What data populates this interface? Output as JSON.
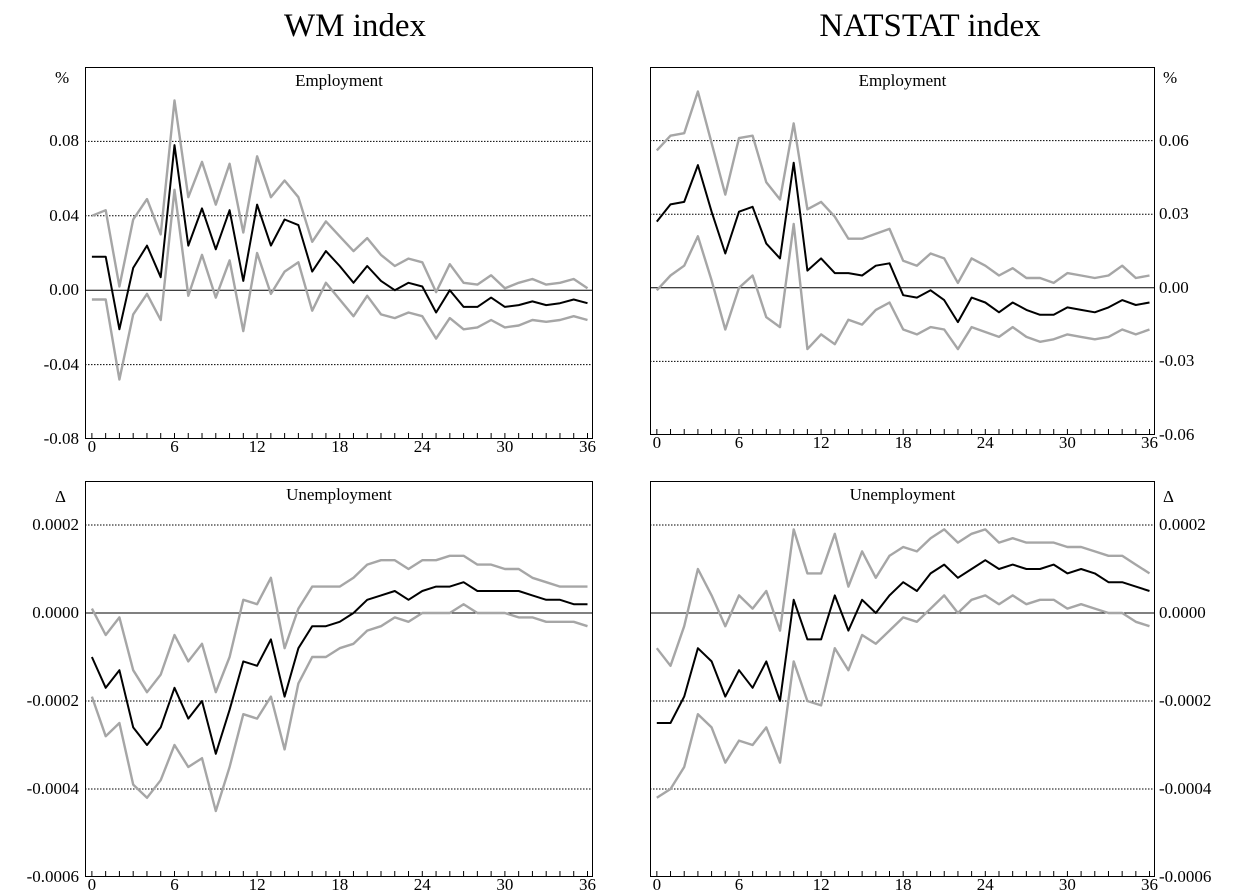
{
  "columns": [
    {
      "title": "WM index"
    },
    {
      "title": "NATSTAT index"
    }
  ],
  "colors": {
    "point": "#000000",
    "band": "#a6a6a6",
    "grid": "#000000",
    "frame": "#000000"
  },
  "chart_data": [
    {
      "type": "line",
      "title": "Employment",
      "unit_label": "%",
      "axis_side": "left",
      "x": [
        0,
        1,
        2,
        3,
        4,
        5,
        6,
        7,
        8,
        9,
        10,
        11,
        12,
        13,
        14,
        15,
        16,
        17,
        18,
        19,
        20,
        21,
        22,
        23,
        24,
        25,
        26,
        27,
        28,
        29,
        30,
        31,
        32,
        33,
        34,
        35,
        36
      ],
      "xticks": [
        "0",
        "6",
        "12",
        "18",
        "24",
        "30",
        "36"
      ],
      "xtick_values": [
        0,
        6,
        12,
        18,
        24,
        30,
        36
      ],
      "xlim": [
        -0.5,
        36.4
      ],
      "ylim": [
        -0.08,
        0.12
      ],
      "yticks": [
        "-0.08",
        "-0.04",
        "0.00",
        "0.04",
        "0.08"
      ],
      "ytick_values": [
        -0.08,
        -0.04,
        0.0,
        0.04,
        0.08
      ],
      "grid": [
        -0.04,
        0.04,
        0.08
      ],
      "zero_line": 0,
      "series": [
        {
          "role": "upper",
          "values": [
            0.04,
            0.043,
            0.002,
            0.038,
            0.049,
            0.03,
            0.102,
            0.05,
            0.069,
            0.046,
            0.068,
            0.031,
            0.072,
            0.05,
            0.059,
            0.05,
            0.026,
            0.037,
            0.029,
            0.021,
            0.028,
            0.019,
            0.013,
            0.017,
            0.015,
            -0.001,
            0.014,
            0.004,
            0.003,
            0.008,
            0.001,
            0.004,
            0.006,
            0.003,
            0.004,
            0.006,
            0.001
          ]
        },
        {
          "role": "point",
          "values": [
            0.018,
            0.018,
            -0.021,
            0.012,
            0.024,
            0.007,
            0.078,
            0.024,
            0.044,
            0.022,
            0.043,
            0.005,
            0.046,
            0.024,
            0.038,
            0.035,
            0.01,
            0.021,
            0.013,
            0.004,
            0.013,
            0.005,
            0.0,
            0.004,
            0.002,
            -0.012,
            0.0,
            -0.009,
            -0.009,
            -0.004,
            -0.009,
            -0.008,
            -0.006,
            -0.008,
            -0.007,
            -0.005,
            -0.007
          ]
        },
        {
          "role": "lower",
          "values": [
            -0.005,
            -0.005,
            -0.048,
            -0.013,
            -0.002,
            -0.016,
            0.054,
            -0.003,
            0.019,
            -0.004,
            0.016,
            -0.022,
            0.02,
            -0.002,
            0.01,
            0.015,
            -0.011,
            0.004,
            -0.005,
            -0.014,
            -0.003,
            -0.013,
            -0.015,
            -0.012,
            -0.014,
            -0.026,
            -0.015,
            -0.021,
            -0.02,
            -0.016,
            -0.02,
            -0.019,
            -0.016,
            -0.017,
            -0.016,
            -0.014,
            -0.016
          ]
        }
      ]
    },
    {
      "type": "line",
      "title": "Employment",
      "unit_label": "%",
      "axis_side": "right",
      "x": [
        0,
        1,
        2,
        3,
        4,
        5,
        6,
        7,
        8,
        9,
        10,
        11,
        12,
        13,
        14,
        15,
        16,
        17,
        18,
        19,
        20,
        21,
        22,
        23,
        24,
        25,
        26,
        27,
        28,
        29,
        30,
        31,
        32,
        33,
        34,
        35,
        36
      ],
      "xticks": [
        "0",
        "6",
        "12",
        "18",
        "24",
        "30",
        "36"
      ],
      "xtick_values": [
        0,
        6,
        12,
        18,
        24,
        30,
        36
      ],
      "xlim": [
        -0.5,
        36.4
      ],
      "ylim": [
        -0.06,
        0.09
      ],
      "yticks": [
        "-0.06",
        "-0.03",
        "0.00",
        "0.03",
        "0.06"
      ],
      "ytick_values": [
        -0.06,
        -0.03,
        0.0,
        0.03,
        0.06
      ],
      "grid": [
        -0.03,
        0.03,
        0.06
      ],
      "zero_line": 0,
      "series": [
        {
          "role": "upper",
          "values": [
            0.056,
            0.062,
            0.063,
            0.08,
            0.059,
            0.038,
            0.061,
            0.062,
            0.043,
            0.036,
            0.067,
            0.032,
            0.035,
            0.029,
            0.02,
            0.02,
            0.022,
            0.024,
            0.011,
            0.009,
            0.014,
            0.012,
            0.002,
            0.012,
            0.009,
            0.005,
            0.008,
            0.004,
            0.004,
            0.002,
            0.006,
            0.005,
            0.004,
            0.005,
            0.009,
            0.004,
            0.005
          ]
        },
        {
          "role": "point",
          "values": [
            0.027,
            0.034,
            0.035,
            0.05,
            0.031,
            0.014,
            0.031,
            0.033,
            0.018,
            0.012,
            0.051,
            0.007,
            0.012,
            0.006,
            0.006,
            0.005,
            0.009,
            0.01,
            -0.003,
            -0.004,
            -0.001,
            -0.005,
            -0.014,
            -0.004,
            -0.006,
            -0.01,
            -0.006,
            -0.009,
            -0.011,
            -0.011,
            -0.008,
            -0.009,
            -0.01,
            -0.008,
            -0.005,
            -0.007,
            -0.006
          ]
        },
        {
          "role": "lower",
          "values": [
            -0.001,
            0.005,
            0.009,
            0.021,
            0.003,
            -0.017,
            0.0,
            0.005,
            -0.012,
            -0.016,
            0.026,
            -0.025,
            -0.019,
            -0.023,
            -0.013,
            -0.015,
            -0.009,
            -0.006,
            -0.017,
            -0.019,
            -0.016,
            -0.017,
            -0.025,
            -0.016,
            -0.018,
            -0.02,
            -0.016,
            -0.02,
            -0.022,
            -0.021,
            -0.019,
            -0.02,
            -0.021,
            -0.02,
            -0.017,
            -0.019,
            -0.017
          ]
        }
      ]
    },
    {
      "type": "line",
      "title": "Unemployment",
      "unit_label": "Δ",
      "axis_side": "left",
      "x": [
        0,
        1,
        2,
        3,
        4,
        5,
        6,
        7,
        8,
        9,
        10,
        11,
        12,
        13,
        14,
        15,
        16,
        17,
        18,
        19,
        20,
        21,
        22,
        23,
        24,
        25,
        26,
        27,
        28,
        29,
        30,
        31,
        32,
        33,
        34,
        35,
        36
      ],
      "xticks": [
        "0",
        "6",
        "12",
        "18",
        "24",
        "30",
        "36"
      ],
      "xtick_values": [
        0,
        6,
        12,
        18,
        24,
        30,
        36
      ],
      "xlim": [
        -0.5,
        36.4
      ],
      "ylim": [
        -0.0006,
        0.0003
      ],
      "yticks": [
        "-0.0006",
        "-0.0004",
        "-0.0002",
        "0.0000",
        "0.0002"
      ],
      "ytick_values": [
        -0.0006,
        -0.0004,
        -0.0002,
        0.0,
        0.0002
      ],
      "grid": [
        -0.0004,
        -0.0002,
        0.0002
      ],
      "zero_line": 0,
      "series": [
        {
          "role": "upper",
          "values": [
            1e-05,
            -5e-05,
            -1e-05,
            -0.00013,
            -0.00018,
            -0.00014,
            -5e-05,
            -0.00011,
            -7e-05,
            -0.00018,
            -0.0001,
            3e-05,
            2e-05,
            8e-05,
            -8e-05,
            1e-05,
            6e-05,
            6e-05,
            6e-05,
            8e-05,
            0.00011,
            0.00012,
            0.00012,
            0.0001,
            0.00012,
            0.00012,
            0.00013,
            0.00013,
            0.00011,
            0.00011,
            0.0001,
            0.0001,
            8e-05,
            7e-05,
            6e-05,
            6e-05,
            6e-05
          ]
        },
        {
          "role": "point",
          "values": [
            -0.0001,
            -0.00017,
            -0.00013,
            -0.00026,
            -0.0003,
            -0.00026,
            -0.00017,
            -0.00024,
            -0.0002,
            -0.00032,
            -0.00022,
            -0.00011,
            -0.00012,
            -6e-05,
            -0.00019,
            -8e-05,
            -3e-05,
            -3e-05,
            -2e-05,
            0.0,
            3e-05,
            4e-05,
            5e-05,
            3e-05,
            5e-05,
            6e-05,
            6e-05,
            7e-05,
            5e-05,
            5e-05,
            5e-05,
            5e-05,
            4e-05,
            3e-05,
            3e-05,
            2e-05,
            2e-05
          ]
        },
        {
          "role": "lower",
          "values": [
            -0.00019,
            -0.00028,
            -0.00025,
            -0.00039,
            -0.00042,
            -0.00038,
            -0.0003,
            -0.00035,
            -0.00033,
            -0.00045,
            -0.00035,
            -0.00023,
            -0.00024,
            -0.00019,
            -0.00031,
            -0.00016,
            -0.0001,
            -0.0001,
            -8e-05,
            -7e-05,
            -4e-05,
            -3e-05,
            -1e-05,
            -2e-05,
            0.0,
            0.0,
            0.0,
            2e-05,
            0.0,
            0.0,
            0.0,
            -1e-05,
            -1e-05,
            -2e-05,
            -2e-05,
            -2e-05,
            -3e-05
          ]
        }
      ]
    },
    {
      "type": "line",
      "title": "Unemployment",
      "unit_label": "Δ",
      "axis_side": "right",
      "x": [
        0,
        1,
        2,
        3,
        4,
        5,
        6,
        7,
        8,
        9,
        10,
        11,
        12,
        13,
        14,
        15,
        16,
        17,
        18,
        19,
        20,
        21,
        22,
        23,
        24,
        25,
        26,
        27,
        28,
        29,
        30,
        31,
        32,
        33,
        34,
        35,
        36
      ],
      "xticks": [
        "0",
        "6",
        "12",
        "18",
        "24",
        "30",
        "36"
      ],
      "xtick_values": [
        0,
        6,
        12,
        18,
        24,
        30,
        36
      ],
      "xlim": [
        -0.5,
        36.4
      ],
      "ylim": [
        -0.0006,
        0.0003
      ],
      "yticks": [
        "-0.0006",
        "-0.0004",
        "-0.0002",
        "0.0000",
        "0.0002"
      ],
      "ytick_values": [
        -0.0006,
        -0.0004,
        -0.0002,
        0.0,
        0.0002
      ],
      "grid": [
        -0.0004,
        -0.0002,
        0.0002
      ],
      "zero_line": 0,
      "series": [
        {
          "role": "upper",
          "values": [
            -8e-05,
            -0.00012,
            -3e-05,
            0.0001,
            4e-05,
            -3e-05,
            4e-05,
            1e-05,
            5e-05,
            -4e-05,
            0.00019,
            9e-05,
            9e-05,
            0.00018,
            6e-05,
            0.00014,
            8e-05,
            0.00013,
            0.00015,
            0.00014,
            0.00017,
            0.00019,
            0.00016,
            0.00018,
            0.00019,
            0.00016,
            0.00017,
            0.00016,
            0.00016,
            0.00016,
            0.00015,
            0.00015,
            0.00014,
            0.00013,
            0.00013,
            0.00011,
            9e-05
          ]
        },
        {
          "role": "point",
          "values": [
            -0.00025,
            -0.00025,
            -0.00019,
            -8e-05,
            -0.00011,
            -0.00019,
            -0.00013,
            -0.00017,
            -0.00011,
            -0.0002,
            3e-05,
            -6e-05,
            -6e-05,
            4e-05,
            -4e-05,
            3e-05,
            0.0,
            4e-05,
            7e-05,
            5e-05,
            9e-05,
            0.00011,
            8e-05,
            0.0001,
            0.00012,
            0.0001,
            0.00011,
            0.0001,
            0.0001,
            0.00011,
            9e-05,
            0.0001,
            9e-05,
            7e-05,
            7e-05,
            6e-05,
            5e-05
          ]
        },
        {
          "role": "lower",
          "values": [
            -0.00042,
            -0.0004,
            -0.00035,
            -0.00023,
            -0.00026,
            -0.00034,
            -0.00029,
            -0.0003,
            -0.00026,
            -0.00034,
            -0.00011,
            -0.0002,
            -0.00021,
            -8e-05,
            -0.00013,
            -5e-05,
            -7e-05,
            -4e-05,
            -1e-05,
            -2e-05,
            1e-05,
            4e-05,
            0.0,
            3e-05,
            4e-05,
            2e-05,
            4e-05,
            2e-05,
            3e-05,
            3e-05,
            1e-05,
            2e-05,
            1e-05,
            0.0,
            0.0,
            -2e-05,
            -3e-05
          ]
        }
      ]
    }
  ]
}
